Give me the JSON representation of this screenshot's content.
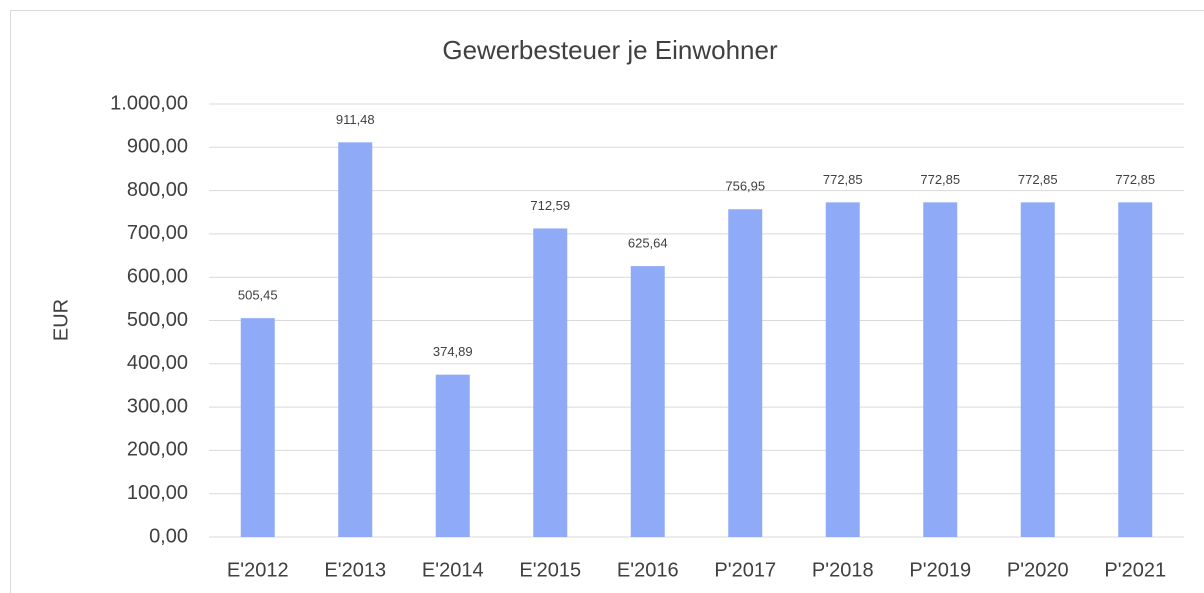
{
  "chart_data": {
    "type": "bar",
    "title": "Gewerbesteuer je Einwohner",
    "y_label": "EUR",
    "categories": [
      "E'2012",
      "E'2013",
      "E'2014",
      "E'2015",
      "E'2016",
      "P'2017",
      "P'2018",
      "P'2019",
      "P'2020",
      "P'2021"
    ],
    "values": [
      505.45,
      911.48,
      374.89,
      712.59,
      625.64,
      756.95,
      772.85,
      772.85,
      772.85,
      772.85
    ],
    "value_labels": [
      "505,45",
      "911,48",
      "374,89",
      "712,59",
      "625,64",
      "756,95",
      "772,85",
      "772,85",
      "772,85",
      "772,85"
    ],
    "color": "#8faaf7",
    "ylim": [
      0,
      1000
    ],
    "yticks": [
      {
        "value": 0,
        "label": "0,00"
      },
      {
        "value": 100,
        "label": "100,00"
      },
      {
        "value": 200,
        "label": "200,00"
      },
      {
        "value": 300,
        "label": "300,00"
      },
      {
        "value": 400,
        "label": "400,00"
      },
      {
        "value": 500,
        "label": "500,00"
      },
      {
        "value": 600,
        "label": "600,00"
      },
      {
        "value": 700,
        "label": "700,00"
      },
      {
        "value": 800,
        "label": "800,00"
      },
      {
        "value": 900,
        "label": "900,00"
      },
      {
        "value": 1000,
        "label": "1.000,00"
      }
    ],
    "grid": true
  }
}
